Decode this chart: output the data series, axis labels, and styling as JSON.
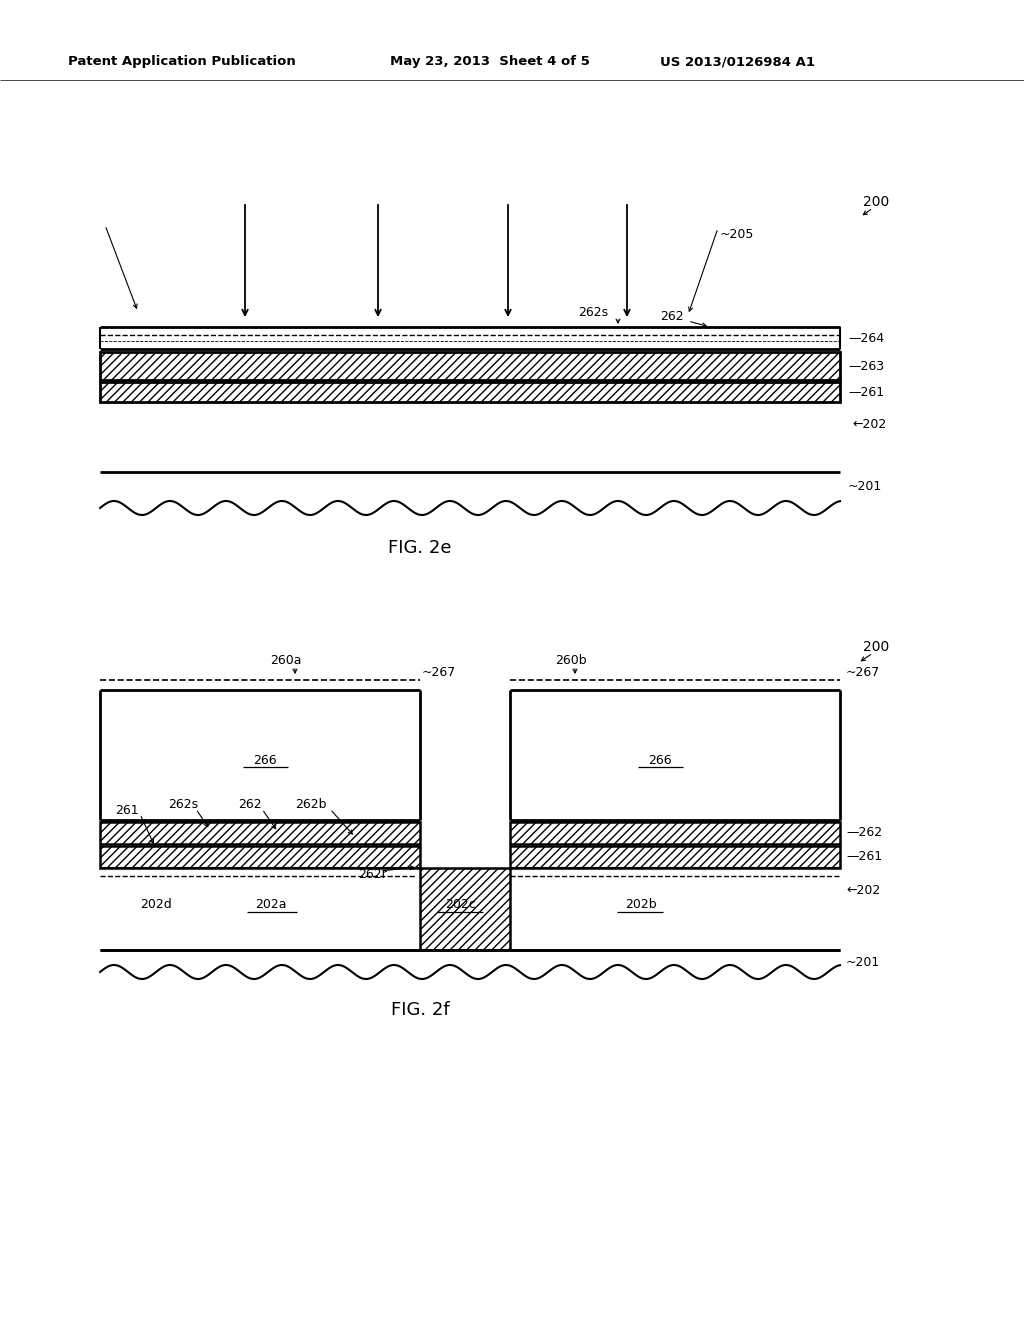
{
  "header_left": "Patent Application Publication",
  "header_mid": "May 23, 2013  Sheet 4 of 5",
  "header_right": "US 2013/0126984 A1",
  "fig2e_label": "FIG. 2e",
  "fig2f_label": "FIG. 2f",
  "bg_color": "#ffffff",
  "line_color": "#000000"
}
